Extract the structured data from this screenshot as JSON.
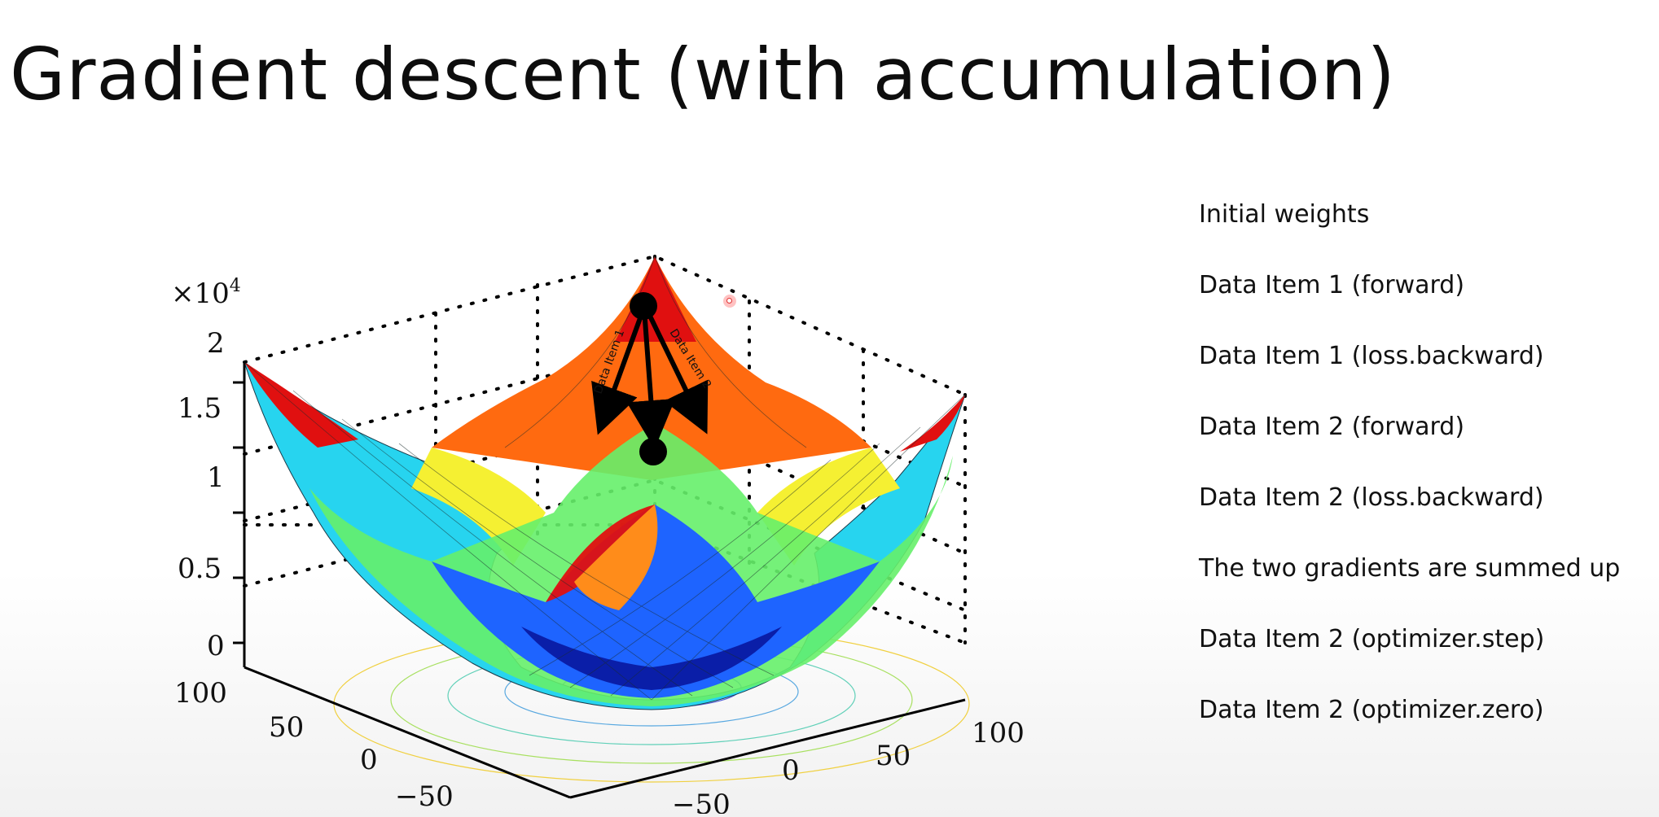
{
  "slide": {
    "title": "Gradient descent (with accumulation)",
    "steps": [
      "Initial weights",
      "Data Item 1 (forward)",
      "Data Item 1 (loss.backward)",
      "Data Item 2 (forward)",
      "Data Item 2 (loss.backward)",
      "The two gradients are summed up",
      "Data Item 2 (optimizer.step)",
      "Data Item 2 (optimizer.zero)"
    ]
  },
  "surface": {
    "type": "3d-surface",
    "z_scale_label": "×10",
    "z_scale_exponent": "4",
    "z_ticks": [
      "2",
      "1.5",
      "1",
      "0.5",
      "0"
    ],
    "y_ticks": [
      "100",
      "50",
      "0",
      "−50"
    ],
    "x_ticks": [
      "−50",
      "0",
      "50",
      "100"
    ],
    "arrow_labels": [
      "Data Item 1",
      "Data Item 2"
    ],
    "colormap": [
      "#0a1ea8",
      "#1e64ff",
      "#20d8f0",
      "#66f06a",
      "#f5f032",
      "#ff8c1a",
      "#e01010"
    ]
  }
}
